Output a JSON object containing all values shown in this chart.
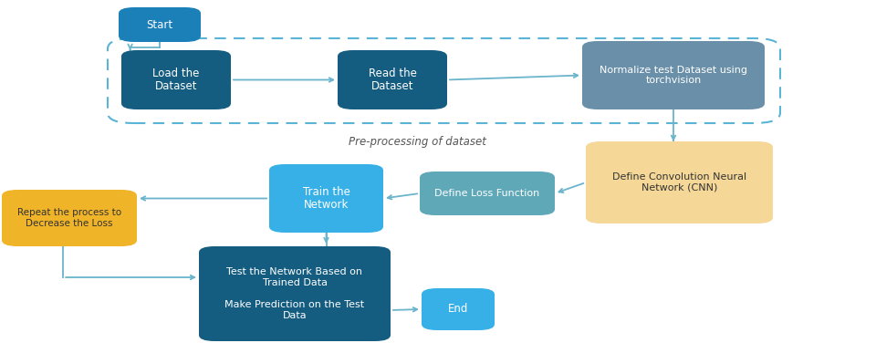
{
  "boxes": {
    "start": {
      "label": "Start",
      "color": "#1b7fb8",
      "text_color": "#ffffff",
      "fontsize": 8.5,
      "bold": false
    },
    "load": {
      "label": "Load the\nDataset",
      "color": "#145c80",
      "text_color": "#ffffff",
      "fontsize": 8.5,
      "bold": false
    },
    "read": {
      "label": "Read the\nDataset",
      "color": "#145c80",
      "text_color": "#ffffff",
      "fontsize": 8.5,
      "bold": false
    },
    "normalize": {
      "label": "Normalize test Dataset using\ntorchvision",
      "color": "#6a8fa8",
      "text_color": "#ffffff",
      "fontsize": 8.0,
      "bold": false
    },
    "train": {
      "label": "Train the\nNetwork",
      "color": "#37b0e8",
      "text_color": "#ffffff",
      "fontsize": 8.5,
      "bold": false
    },
    "define_loss": {
      "label": "Define Loss Function",
      "color": "#5fa8b8",
      "text_color": "#ffffff",
      "fontsize": 8.0,
      "bold": false
    },
    "define_cnn": {
      "label": "Define Convolution Neural\nNetwork (CNN)",
      "color": "#f5d898",
      "text_color": "#333333",
      "fontsize": 8.0,
      "bold": false
    },
    "repeat": {
      "label": "Repeat the process to\nDecrease the Loss",
      "color": "#f0b429",
      "text_color": "#333333",
      "fontsize": 7.5,
      "bold": false
    },
    "test": {
      "label": "Test the Network Based on\nTrained Data",
      "color": "#145c80",
      "text_color": "#ffffff",
      "fontsize": 8.0,
      "bold": false
    },
    "predict": {
      "label": "Make Prediction on the Test\nData",
      "color": "#145c80",
      "text_color": "#ffffff",
      "fontsize": 8.0,
      "bold": false
    },
    "end": {
      "label": "End",
      "color": "#37b0e8",
      "text_color": "#ffffff",
      "fontsize": 8.5,
      "bold": false
    }
  },
  "arrow_color": "#6ab4cc",
  "dash_color": "#5ab4d6",
  "preproc_label": "Pre-processing of dataset",
  "preproc_label_color": "#555555"
}
